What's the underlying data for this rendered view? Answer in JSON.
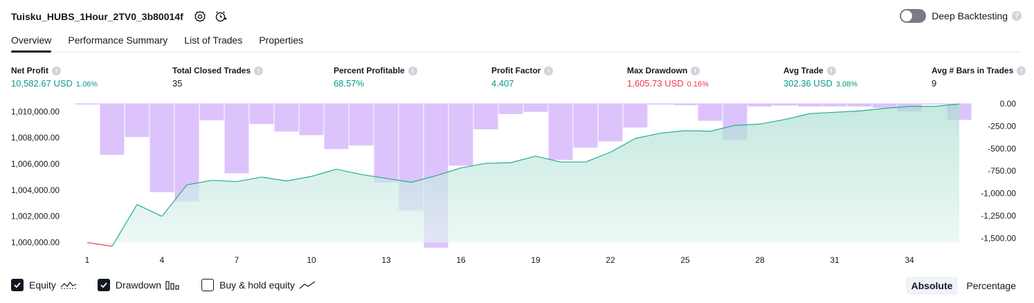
{
  "header": {
    "title": "Tuisku_HUBS_1Hour_2TV0_3b80014f",
    "deep_backtesting_label": "Deep Backtesting",
    "deep_backtesting_on": false
  },
  "tabs": [
    {
      "label": "Overview",
      "active": true
    },
    {
      "label": "Performance Summary",
      "active": false
    },
    {
      "label": "List of Trades",
      "active": false
    },
    {
      "label": "Properties",
      "active": false
    }
  ],
  "metrics": {
    "net_profit": {
      "label": "Net Profit",
      "value": "10,582.67 USD",
      "pct": "1.06%"
    },
    "total_closed_trades": {
      "label": "Total Closed Trades",
      "value": "35"
    },
    "percent_profitable": {
      "label": "Percent Profitable",
      "value": "68.57%"
    },
    "profit_factor": {
      "label": "Profit Factor",
      "value": "4.407"
    },
    "max_drawdown": {
      "label": "Max Drawdown",
      "value": "1,605.73 USD",
      "pct": "0.16%"
    },
    "avg_trade": {
      "label": "Avg Trade",
      "value": "302.36 USD",
      "pct": "3.08%"
    },
    "avg_bars": {
      "label": "Avg # Bars in Trades",
      "value": "9"
    }
  },
  "colors": {
    "positive": "#089981",
    "negative": "#f23645",
    "equity_line": "#22ab94",
    "equity_fill": "#bfe6dc",
    "drawdown_bar": "#d7b8fb"
  },
  "chart_data": {
    "type": "area",
    "x_ticks": [
      1,
      4,
      7,
      10,
      13,
      16,
      19,
      22,
      25,
      28,
      31,
      34
    ],
    "x_range": [
      1,
      36
    ],
    "equity": {
      "name": "Equity",
      "x": [
        1,
        2,
        3,
        4,
        5,
        6,
        7,
        8,
        9,
        10,
        11,
        12,
        13,
        14,
        15,
        16,
        17,
        18,
        19,
        20,
        21,
        22,
        23,
        24,
        25,
        26,
        27,
        28,
        29,
        30,
        31,
        32,
        33,
        34,
        35,
        36
      ],
      "values": [
        1000000,
        999700,
        1002900,
        1002000,
        1004400,
        1004750,
        1004650,
        1005000,
        1004700,
        1005050,
        1005600,
        1005200,
        1004900,
        1004600,
        1005100,
        1005700,
        1006050,
        1006100,
        1006600,
        1006150,
        1006150,
        1006900,
        1007950,
        1008350,
        1008550,
        1008500,
        1008950,
        1009050,
        1009400,
        1009850,
        1009950,
        1010050,
        1010250,
        1010400,
        1010400,
        1010580
      ],
      "y_ticks_labels": [
        "1,010,000.00",
        "1,008,000.00",
        "1,006,000.00",
        "1,004,000.00",
        "1,002,000.00",
        "1,000,000.00"
      ],
      "y_ticks": [
        1010000,
        1008000,
        1006000,
        1004000,
        1002000,
        1000000
      ],
      "ylim": [
        999500,
        1010600
      ]
    },
    "drawdown": {
      "name": "Drawdown",
      "x": [
        1,
        2,
        3,
        4,
        5,
        6,
        7,
        8,
        9,
        10,
        11,
        12,
        13,
        14,
        15,
        16,
        17,
        18,
        19,
        20,
        21,
        22,
        23,
        24,
        25,
        26,
        27,
        28,
        29,
        30,
        31,
        32,
        33,
        34,
        35,
        36
      ],
      "values": [
        -5,
        -570,
        -370,
        -985,
        -1090,
        -185,
        -775,
        -225,
        -310,
        -350,
        -505,
        -465,
        -880,
        -1190,
        -1605,
        -690,
        -285,
        -115,
        -90,
        -625,
        -490,
        -420,
        -265,
        -5,
        -15,
        -190,
        -405,
        -30,
        -20,
        -30,
        -30,
        -30,
        -45,
        -85,
        -5,
        -180
      ],
      "y_ticks_labels": [
        "0.00",
        "-250.00",
        "-500.00",
        "-750.00",
        "-1,000.00",
        "-1,250.00",
        "-1,500.00"
      ],
      "y_ticks": [
        0,
        -250,
        -500,
        -750,
        -1000,
        -1250,
        -1500
      ],
      "ylim": [
        -1620,
        0
      ]
    }
  },
  "legend": {
    "equity": {
      "label": "Equity",
      "checked": true
    },
    "drawdown": {
      "label": "Drawdown",
      "checked": true
    },
    "buy_hold": {
      "label": "Buy & hold equity",
      "checked": false
    }
  },
  "scale": {
    "absolute_label": "Absolute",
    "percentage_label": "Percentage",
    "active": "absolute"
  }
}
